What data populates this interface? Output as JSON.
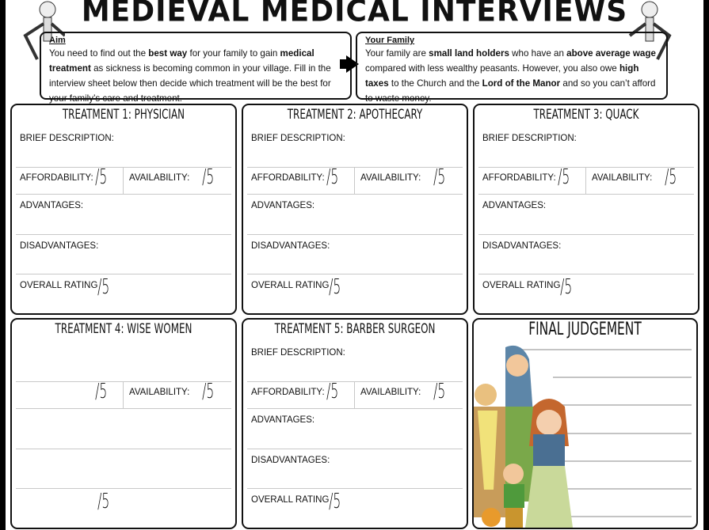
{
  "title": "MEDIEVAL MEDICAL INTERVIEWS",
  "aim": {
    "heading": "Aim",
    "parts": [
      [
        "You need to find out the ",
        0
      ],
      [
        "best way",
        1
      ],
      [
        " for your family to gain ",
        0
      ],
      [
        "medical treatment",
        1
      ],
      [
        " as sickness is becoming common in your village. Fill in the interview sheet below then decide which treatment will be the best for your family’s care and treatment.",
        0
      ]
    ]
  },
  "family": {
    "heading": "Your Family",
    "parts": [
      [
        "Your family are ",
        0
      ],
      [
        "small land holders",
        1
      ],
      [
        " who have an ",
        0
      ],
      [
        "above average wage",
        1
      ],
      [
        " compared with less wealthy peasants.  However, you also owe ",
        0
      ],
      [
        "high taxes",
        1
      ],
      [
        " to the Church and the ",
        0
      ],
      [
        "Lord of the Manor",
        1
      ],
      [
        " and so you can’t afford to waste money.",
        0
      ]
    ]
  },
  "panels": [
    {
      "title": "TREATMENT 1: PHYSICIAN",
      "brief": "BRIEF DESCRIPTION:",
      "affordability": "AFFORDABILITY:",
      "availability": "AVAILABILITY:",
      "advantages": "ADVANTAGES:",
      "disadvantages": "DISADVANTAGES:",
      "overall": "OVERALL RATING",
      "score": "/5"
    },
    {
      "title": "TREATMENT 2: APOTHECARY",
      "brief": "BRIEF DESCRIPTION:",
      "affordability": "AFFORDABILITY:",
      "availability": "AVAILABILITY:",
      "advantages": "ADVANTAGES:",
      "disadvantages": "DISADVANTAGES:",
      "overall": "OVERALL RATING",
      "score": "/5"
    },
    {
      "title": "TREATMENT 3: QUACK",
      "brief": "BRIEF DESCRIPTION:",
      "affordability": "AFFORDABILITY:",
      "availability": "AVAILABILITY:",
      "advantages": "ADVANTAGES:",
      "disadvantages": "DISADVANTAGES:",
      "overall": "OVERALL RATING",
      "score": "/5"
    },
    {
      "title": "TREATMENT 4: WISE WOMEN",
      "brief": "",
      "affordability": "",
      "availability": "AVAILABILITY:",
      "advantages": "",
      "disadvantages": "",
      "overall": "",
      "score": "/5"
    },
    {
      "title": "TREATMENT 5: BARBER SURGEON",
      "brief": "BRIEF DESCRIPTION:",
      "affordability": "AFFORDABILITY:",
      "availability": "AVAILABILITY:",
      "advantages": "ADVANTAGES:",
      "disadvantages": "DISADVANTAGES:",
      "overall": "OVERALL RATING",
      "score": "/5"
    }
  ],
  "final": {
    "title": "FINAL JUDGEMENT"
  }
}
